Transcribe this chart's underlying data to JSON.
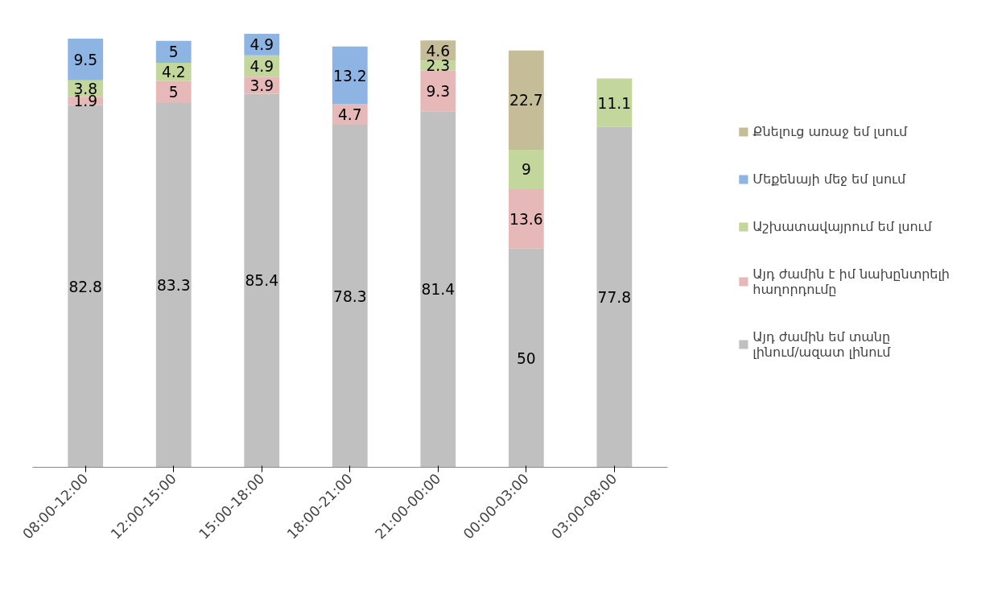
{
  "chart_data": {
    "type": "bar",
    "stacked": true,
    "data_labels": true,
    "legend": "right",
    "grid": false,
    "categories": [
      "08:00-12:00",
      "12:00-15:00",
      "15:00-18:00",
      "18:00-21:00",
      "21:00-00:00",
      "00:00-03:00",
      "03:00-08:00"
    ],
    "series": [
      {
        "name": "Այդ ժամին եմ տանը լինում/ազատ լինում",
        "color": "#c0c0c0",
        "values": [
          82.8,
          83.3,
          85.4,
          78.3,
          81.4,
          50,
          77.8
        ]
      },
      {
        "name": "Այդ ժամին է իմ նախընտրելի հաղորդումը",
        "color": "#e6b9b8",
        "values": [
          1.9,
          5,
          3.9,
          4.7,
          9.3,
          13.6,
          null
        ]
      },
      {
        "name": "Աշխատավայրում եմ լսում",
        "color": "#c3d69b",
        "values": [
          3.8,
          4.2,
          4.9,
          null,
          2.3,
          9,
          11.1
        ]
      },
      {
        "name": "Մեքենայի մեջ եմ լսում",
        "color": "#8eb4e3",
        "values": [
          9.5,
          5,
          4.9,
          13.2,
          null,
          null,
          null
        ]
      },
      {
        "name": "Քնելուց առաջ եմ լսում",
        "color": "#c4bd97",
        "values": [
          null,
          null,
          null,
          null,
          4.6,
          22.7,
          null
        ]
      }
    ]
  }
}
